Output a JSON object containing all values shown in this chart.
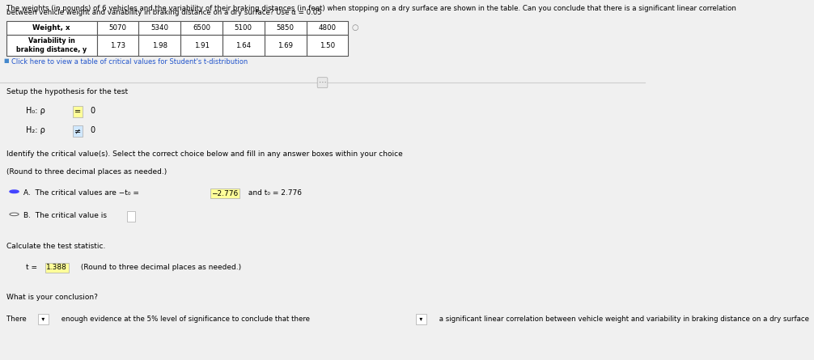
{
  "title_line1": "The weights (in pounds) of 6 vehicles and the variability of their braking distances (in feet) when stopping on a dry surface are shown in the table. Can you conclude that there is a significant linear correlation",
  "title_line2": "between vehicle weight and variability in braking distance on a dry surface? Use α = 0.05",
  "table_headers": [
    "Weight, x",
    "5070",
    "5340",
    "6500",
    "5100",
    "5850",
    "4800"
  ],
  "table_row2_label": "Variability in\nbraking distance, y",
  "table_row2_values": [
    "1.73",
    "1.98",
    "1.91",
    "1.64",
    "1.69",
    "1.50"
  ],
  "link_text": "Click here to view a table of critical values for Student's t-distribution",
  "section1_header": "Setup the hypothesis for the test",
  "section2_header": "Identify the critical value(s). Select the correct choice below and fill in any answer boxes within your choice",
  "section2_subheader": "(Round to three decimal places as needed.)",
  "option_B_text": "The critical value is",
  "section3_header": "Calculate the test statistic.",
  "section4_header": "What is your conclusion?",
  "bg_color": "#f0f0f0",
  "table_bg": "#ffffff",
  "highlight_yellow": "#ffff99",
  "highlight_blue": "#d0e8ff",
  "text_color": "#000000",
  "link_color": "#2255cc",
  "selected_radio_color": "#4444ff",
  "divider_color": "#cccccc"
}
